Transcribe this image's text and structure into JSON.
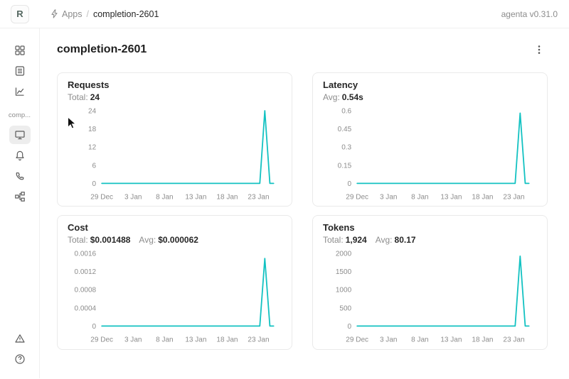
{
  "header": {
    "logo_letter": "R",
    "breadcrumb": {
      "apps": "Apps",
      "separator": "/",
      "current": "completion-2601"
    },
    "version": "agenta v0.31.0"
  },
  "sidebar": {
    "app_label": "comp...",
    "top_icons": [
      "dashboard-grid",
      "list",
      "line-chart"
    ],
    "app_icons": [
      "desktop",
      "bell",
      "phone",
      "tree"
    ],
    "bottom_icons": [
      "alert-triangle",
      "question-circle"
    ]
  },
  "page": {
    "title": "completion-2601"
  },
  "colors": {
    "accent": "#13c2c2",
    "text_muted": "#8c8c8c",
    "border": "#eaeaea"
  },
  "chart_data": [
    {
      "type": "line",
      "title": "Requests",
      "stats": [
        {
          "label": "Total:",
          "value": "24"
        }
      ],
      "color": "#13c2c2",
      "x_tick_labels": [
        "29 Dec",
        "3 Jan",
        "8 Jan",
        "13 Jan",
        "18 Jan",
        "23 Jan"
      ],
      "x_tick_positions": [
        0,
        5,
        10,
        15,
        20,
        25
      ],
      "x_domain": [
        0,
        28
      ],
      "yticks": [
        0,
        6,
        12,
        18,
        24
      ],
      "ytick_labels": [
        "0",
        "6",
        "12",
        "18",
        "24"
      ],
      "ylim": [
        0,
        24
      ],
      "x": [
        0,
        25.2,
        26,
        26.8,
        27.4
      ],
      "y": [
        0,
        0,
        24,
        0,
        0
      ]
    },
    {
      "type": "line",
      "title": "Latency",
      "stats": [
        {
          "label": "Avg:",
          "value": "0.54s"
        }
      ],
      "color": "#13c2c2",
      "x_tick_labels": [
        "29 Dec",
        "3 Jan",
        "8 Jan",
        "13 Jan",
        "18 Jan",
        "23 Jan"
      ],
      "x_tick_positions": [
        0,
        5,
        10,
        15,
        20,
        25
      ],
      "x_domain": [
        0,
        28
      ],
      "yticks": [
        0,
        0.15,
        0.3,
        0.45,
        0.6
      ],
      "ytick_labels": [
        "0",
        "0.15",
        "0.3",
        "0.45",
        "0.6"
      ],
      "ylim": [
        0,
        0.6
      ],
      "x": [
        0,
        25.2,
        26,
        26.8,
        27.4
      ],
      "y": [
        0,
        0,
        0.58,
        0,
        0
      ]
    },
    {
      "type": "line",
      "title": "Cost",
      "stats": [
        {
          "label": "Total:",
          "value": "$0.001488"
        },
        {
          "label": "Avg:",
          "value": "$0.000062"
        }
      ],
      "color": "#13c2c2",
      "x_tick_labels": [
        "29 Dec",
        "3 Jan",
        "8 Jan",
        "13 Jan",
        "18 Jan",
        "23 Jan"
      ],
      "x_tick_positions": [
        0,
        5,
        10,
        15,
        20,
        25
      ],
      "x_domain": [
        0,
        28
      ],
      "yticks": [
        0,
        0.0004,
        0.0008,
        0.0012,
        0.0016
      ],
      "ytick_labels": [
        "0",
        "0.0004",
        "0.0008",
        "0.0012",
        "0.0016"
      ],
      "ylim": [
        0,
        0.0016
      ],
      "x": [
        0,
        25.2,
        26,
        26.8,
        27.4
      ],
      "y": [
        0,
        0,
        0.001488,
        0,
        0
      ]
    },
    {
      "type": "line",
      "title": "Tokens",
      "stats": [
        {
          "label": "Total:",
          "value": "1,924"
        },
        {
          "label": "Avg:",
          "value": "80.17"
        }
      ],
      "color": "#13c2c2",
      "x_tick_labels": [
        "29 Dec",
        "3 Jan",
        "8 Jan",
        "13 Jan",
        "18 Jan",
        "23 Jan"
      ],
      "x_tick_positions": [
        0,
        5,
        10,
        15,
        20,
        25
      ],
      "x_domain": [
        0,
        28
      ],
      "yticks": [
        0,
        500,
        1000,
        1500,
        2000
      ],
      "ytick_labels": [
        "0",
        "500",
        "1000",
        "1500",
        "2000"
      ],
      "ylim": [
        0,
        2000
      ],
      "x": [
        0,
        25.2,
        26,
        26.8,
        27.4
      ],
      "y": [
        0,
        0,
        1924,
        0,
        0
      ]
    }
  ]
}
